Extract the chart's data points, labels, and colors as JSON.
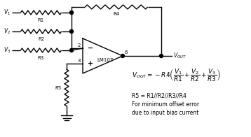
{
  "bg_color": "#ffffff",
  "line_color": "#000000",
  "dot_color": "#000000",
  "figsize": [
    3.58,
    1.96
  ],
  "dpi": 100,
  "v1_label": "V₁",
  "v2_label": "V₂",
  "v3_label": "V₃",
  "r1_label": "R1",
  "r2_label": "R2",
  "r3_label": "R3",
  "r4_label": "R4",
  "r5_label": "R5",
  "opamp_label": "LM107",
  "vout_label": "Vₒᵁᵀ",
  "pin2_label": "2",
  "pin3_label": "3",
  "pin6_label": "6",
  "formula_r5": "R5 = R1//R2//R3//R4",
  "formula_line3": "For minimum offset error",
  "formula_line4": "due to input bias current"
}
